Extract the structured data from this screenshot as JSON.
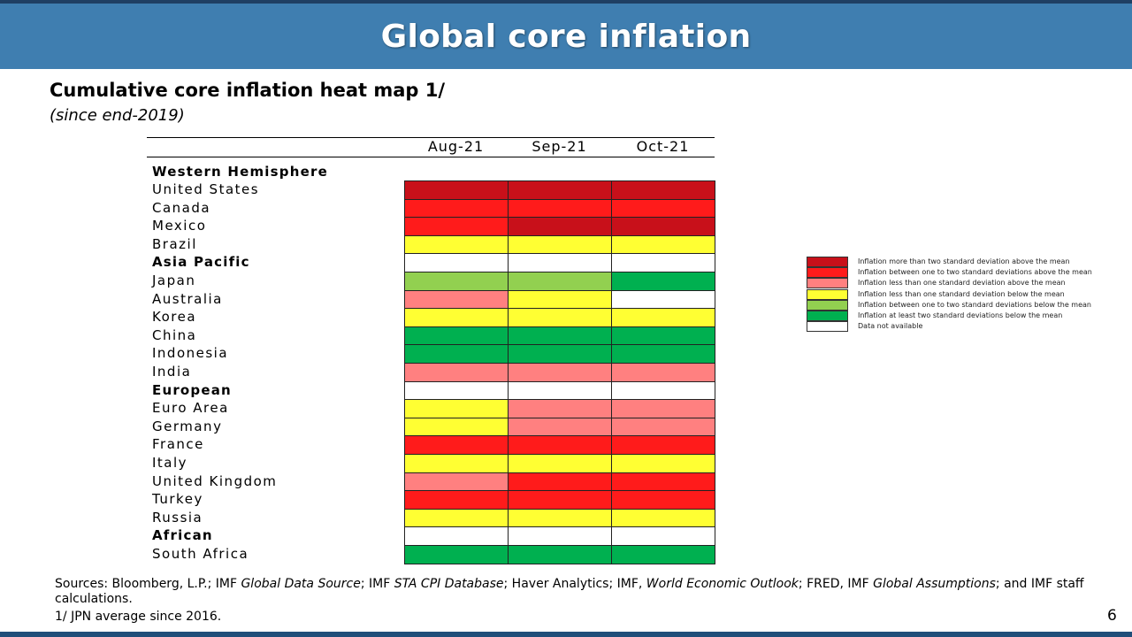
{
  "header": {
    "title": "Global core inflation"
  },
  "subtitle": "Cumulative core inflation heat map 1/",
  "since": "(since end-2019)",
  "chart_data": {
    "type": "heatmap",
    "columns": [
      "Aug-21",
      "Sep-21",
      "Oct-21"
    ],
    "rows": [
      {
        "label": "Western Hemisphere",
        "group": true,
        "values": [
          "na",
          "na",
          "na"
        ],
        "show_cells": false
      },
      {
        "label": "United States",
        "group": false,
        "values": [
          "above_2sd",
          "above_2sd",
          "above_2sd"
        ]
      },
      {
        "label": "Canada",
        "group": false,
        "values": [
          "above_1_2sd",
          "above_1_2sd",
          "above_1_2sd"
        ]
      },
      {
        "label": "Mexico",
        "group": false,
        "values": [
          "above_1_2sd",
          "above_2sd",
          "above_2sd"
        ]
      },
      {
        "label": "Brazil",
        "group": false,
        "values": [
          "below_lt1sd",
          "below_lt1sd",
          "below_lt1sd"
        ]
      },
      {
        "label": "Asia Pacific",
        "group": true,
        "values": [
          "na",
          "na",
          "na"
        ]
      },
      {
        "label": "Japan",
        "group": false,
        "values": [
          "below_1_2sd",
          "below_1_2sd",
          "below_2sd"
        ]
      },
      {
        "label": "Australia",
        "group": false,
        "values": [
          "above_lt1sd",
          "below_lt1sd",
          "na"
        ]
      },
      {
        "label": "Korea",
        "group": false,
        "values": [
          "below_lt1sd",
          "below_lt1sd",
          "below_lt1sd"
        ]
      },
      {
        "label": "China",
        "group": false,
        "values": [
          "below_2sd",
          "below_2sd",
          "below_2sd"
        ]
      },
      {
        "label": "Indonesia",
        "group": false,
        "values": [
          "below_2sd",
          "below_2sd",
          "below_2sd"
        ]
      },
      {
        "label": "India",
        "group": false,
        "values": [
          "above_lt1sd",
          "above_lt1sd",
          "above_lt1sd"
        ]
      },
      {
        "label": "European",
        "group": true,
        "values": [
          "na",
          "na",
          "na"
        ]
      },
      {
        "label": "Euro Area",
        "group": false,
        "values": [
          "below_lt1sd",
          "above_lt1sd",
          "above_lt1sd"
        ]
      },
      {
        "label": "Germany",
        "group": false,
        "values": [
          "below_lt1sd",
          "above_lt1sd",
          "above_lt1sd"
        ]
      },
      {
        "label": "France",
        "group": false,
        "values": [
          "above_1_2sd",
          "above_1_2sd",
          "above_1_2sd"
        ]
      },
      {
        "label": "Italy",
        "group": false,
        "values": [
          "below_lt1sd",
          "below_lt1sd",
          "below_lt1sd"
        ]
      },
      {
        "label": "United Kingdom",
        "group": false,
        "values": [
          "above_lt1sd",
          "above_1_2sd",
          "above_1_2sd"
        ]
      },
      {
        "label": "Turkey",
        "group": false,
        "values": [
          "above_1_2sd",
          "above_1_2sd",
          "above_1_2sd"
        ]
      },
      {
        "label": "Russia",
        "group": false,
        "values": [
          "below_lt1sd",
          "below_lt1sd",
          "below_lt1sd"
        ]
      },
      {
        "label": "African",
        "group": true,
        "values": [
          "na",
          "na",
          "na"
        ]
      },
      {
        "label": "South Africa",
        "group": false,
        "values": [
          "below_2sd",
          "below_2sd",
          "below_2sd"
        ]
      }
    ],
    "legend": [
      {
        "key": "above_2sd",
        "color": "#c8101a",
        "label": "Inflation more than two standard deviation above the mean"
      },
      {
        "key": "above_1_2sd",
        "color": "#ff1b1b",
        "label": "Inflation between one to two standard deviations above the mean"
      },
      {
        "key": "above_lt1sd",
        "color": "#ff8080",
        "label": "Inflation less than one standard deviation above the mean"
      },
      {
        "key": "below_lt1sd",
        "color": "#ffff33",
        "label": "Inflation less than one standard deviation below the mean"
      },
      {
        "key": "below_1_2sd",
        "color": "#92d050",
        "label": "Inflation between one to two standard deviations below the mean"
      },
      {
        "key": "below_2sd",
        "color": "#00b050",
        "label": "Inflation at least two standard deviations below the mean"
      },
      {
        "key": "na",
        "color": "#ffffff",
        "label": "Data not available"
      }
    ],
    "legend_position": "right"
  },
  "footer": {
    "sources_prefix": "Sources: Bloomberg, L.P.; IMF ",
    "sources_i1": "Global Data Source",
    "sources_t1": "; IMF ",
    "sources_i2": "STA CPI Database",
    "sources_t2": "; Haver Analytics; IMF, ",
    "sources_i3": "World Economic Outlook",
    "sources_t3": "; FRED, IMF ",
    "sources_i4": "Global Assumptions",
    "sources_t4": "; and IMF staff calculations.",
    "note": "1/ JPN average since 2016.",
    "page": "6"
  }
}
